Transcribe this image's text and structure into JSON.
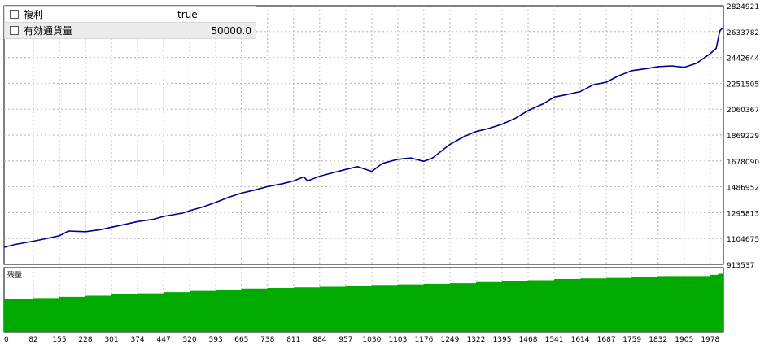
{
  "params": [
    {
      "name": "複利",
      "value": "true",
      "align": "left"
    },
    {
      "name": "有効通貨量",
      "value": "50000.0",
      "align": "right"
    }
  ],
  "chart_data": [
    {
      "type": "line",
      "series": [
        {
          "color": "#00008b",
          "x": [
            0,
            30,
            82,
            120,
            155,
            180,
            228,
            270,
            301,
            340,
            374,
            420,
            447,
            500,
            520,
            560,
            593,
            630,
            665,
            700,
            738,
            780,
            811,
            840,
            850,
            884,
            920,
            957,
            990,
            1030,
            1060,
            1103,
            1140,
            1176,
            1200,
            1249,
            1290,
            1322,
            1360,
            1395,
            1430,
            1468,
            1510,
            1541,
            1570,
            1614,
            1650,
            1687,
            1720,
            1759,
            1800,
            1832,
            1870,
            1905,
            1940,
            1978,
            1995,
            2005,
            2015
          ],
          "values": [
            1040000,
            1060000,
            1085000,
            1105000,
            1125000,
            1160000,
            1155000,
            1170000,
            1188000,
            1210000,
            1230000,
            1248000,
            1268000,
            1292000,
            1310000,
            1340000,
            1372000,
            1410000,
            1440000,
            1462000,
            1488000,
            1510000,
            1530000,
            1560000,
            1530000,
            1565000,
            1590000,
            1615000,
            1636000,
            1600000,
            1660000,
            1690000,
            1700000,
            1675000,
            1700000,
            1800000,
            1860000,
            1895000,
            1920000,
            1950000,
            1990000,
            2050000,
            2100000,
            2150000,
            2165000,
            2190000,
            2240000,
            2260000,
            2305000,
            2345000,
            2360000,
            2375000,
            2380000,
            2370000,
            2400000,
            2470000,
            2510000,
            2640000,
            2665000
          ]
        }
      ],
      "ylim": [
        913537,
        2824921
      ],
      "yticks": [
        "2824921",
        "2633782",
        "2442644",
        "2251505",
        "2060367",
        "1869229",
        "1678090",
        "1486952",
        "1295813",
        "1104675",
        "913537"
      ],
      "grid": true
    },
    {
      "type": "area",
      "title": "残量",
      "series": [
        {
          "color": "#00aa00",
          "x": [
            0,
            82,
            155,
            228,
            301,
            374,
            447,
            520,
            593,
            665,
            738,
            811,
            884,
            957,
            1030,
            1103,
            1176,
            1249,
            1322,
            1395,
            1468,
            1541,
            1614,
            1687,
            1759,
            1832,
            1905,
            1978,
            2000,
            2015
          ],
          "values": [
            0.56,
            0.57,
            0.59,
            0.61,
            0.63,
            0.65,
            0.67,
            0.69,
            0.71,
            0.73,
            0.74,
            0.75,
            0.76,
            0.77,
            0.79,
            0.8,
            0.81,
            0.82,
            0.84,
            0.85,
            0.87,
            0.89,
            0.9,
            0.91,
            0.93,
            0.94,
            0.94,
            0.96,
            0.98,
            1.0
          ]
        }
      ],
      "xticks": [
        "0",
        "82",
        "155",
        "228",
        "301",
        "374",
        "447",
        "520",
        "593",
        "665",
        "738",
        "811",
        "884",
        "957",
        "1030",
        "1103",
        "1176",
        "1249",
        "1322",
        "1395",
        "1468",
        "1541",
        "1614",
        "1687",
        "1759",
        "1832",
        "1905",
        "1978"
      ],
      "xlim": [
        0,
        2015
      ],
      "grid": true
    }
  ]
}
